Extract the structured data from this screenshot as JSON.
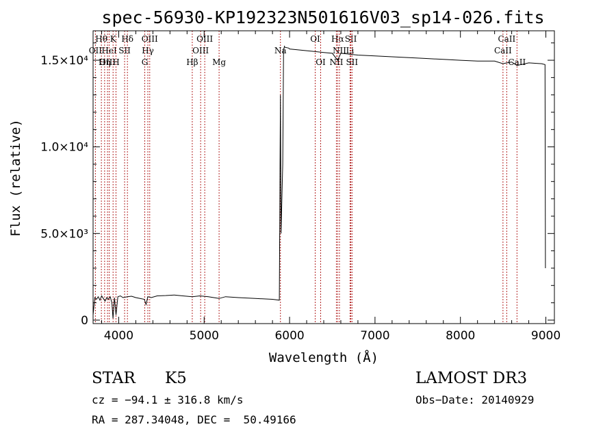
{
  "chart_data": {
    "type": "line",
    "title": "spec-56930-KP192323N501616V03_sp14-026.fits",
    "xlabel": "Wavelength (Å)",
    "ylabel": "Flux (relative)",
    "xlim": [
      3700,
      9100
    ],
    "ylim": [
      -200,
      16700
    ],
    "xticks": [
      4000,
      5000,
      6000,
      7000,
      8000,
      9000
    ],
    "xtick_labels": [
      "4000",
      "5000",
      "6000",
      "7000",
      "8000",
      "9000"
    ],
    "yticks": [
      0,
      5000,
      10000,
      15000
    ],
    "ytick_labels": [
      "0",
      "5.0×10³",
      "1.0×10⁴",
      "1.5×10⁴"
    ],
    "series": [
      {
        "name": "flux",
        "x": [
          3700,
          3720,
          3740,
          3760,
          3780,
          3800,
          3820,
          3840,
          3860,
          3880,
          3900,
          3920,
          3933,
          3950,
          3968,
          3990,
          4020,
          4050,
          4101,
          4150,
          4200,
          4250,
          4300,
          4320,
          4340,
          4380,
          4450,
          4550,
          4650,
          4750,
          4861,
          4950,
          5050,
          5175,
          5250,
          5400,
          5600,
          5800,
          5880,
          5893,
          5900,
          5920,
          5930,
          5940,
          5945,
          5990,
          6000,
          6100,
          6200,
          6300,
          6400,
          6500,
          6563,
          6600,
          6700,
          6800,
          7000,
          7200,
          7400,
          7600,
          7800,
          8000,
          8200,
          8400,
          8498,
          8542,
          8600,
          8662,
          8800,
          8950,
          8990,
          8995
        ],
        "y": [
          300,
          1300,
          1200,
          1350,
          1150,
          1400,
          1250,
          1100,
          1300,
          1200,
          1350,
          1000,
          100,
          1300,
          300,
          1350,
          1400,
          1300,
          1350,
          1380,
          1300,
          1250,
          1200,
          900,
          1350,
          1300,
          1400,
          1420,
          1450,
          1400,
          1350,
          1400,
          1350,
          1250,
          1350,
          1300,
          1250,
          1200,
          1150,
          13000,
          5000,
          9000,
          15600,
          15800,
          15750,
          15700,
          15650,
          15600,
          15550,
          15500,
          15450,
          15400,
          15000,
          15400,
          15350,
          15300,
          15250,
          15200,
          15150,
          15100,
          15050,
          15000,
          14950,
          14950,
          14800,
          14850,
          14900,
          14700,
          14850,
          14800,
          14750,
          3000
        ]
      }
    ],
    "lines": [
      {
        "name": "Hθ",
        "x": 3797,
        "row": 0
      },
      {
        "name": "OII",
        "x": 3727,
        "row": 1
      },
      {
        "name": "OIII",
        "x": 3869,
        "row": 2
      },
      {
        "name": "HeI",
        "x": 3889,
        "row": 1
      },
      {
        "name": "Hη",
        "x": 3835,
        "row": 2
      },
      {
        "name": "K",
        "x": 3934,
        "row": 0
      },
      {
        "name": "SII",
        "x": 4069,
        "row": 1
      },
      {
        "name": "H",
        "x": 3968,
        "row": 2
      },
      {
        "name": "Hδ",
        "x": 4102,
        "row": 0
      },
      {
        "name": "OIII",
        "x": 4363,
        "row": 0
      },
      {
        "name": "Hγ",
        "x": 4341,
        "row": 1
      },
      {
        "name": "G",
        "x": 4305,
        "row": 2
      },
      {
        "name": "OIII",
        "x": 5007,
        "row": 0
      },
      {
        "name": "OIII",
        "x": 4959,
        "row": 1
      },
      {
        "name": "Hβ",
        "x": 4861,
        "row": 2
      },
      {
        "name": "Mg",
        "x": 5175,
        "row": 2
      },
      {
        "name": "Na",
        "x": 5893,
        "row": 1
      },
      {
        "name": "OI",
        "x": 6300,
        "row": 0
      },
      {
        "name": "OI",
        "x": 6364,
        "row": 2
      },
      {
        "name": "Hα",
        "x": 6563,
        "row": 0
      },
      {
        "name": "SII",
        "x": 6717,
        "row": 0
      },
      {
        "name": "NII",
        "x": 6584,
        "row": 1
      },
      {
        "name": "Li",
        "x": 6708,
        "row": 1
      },
      {
        "name": "NII",
        "x": 6548,
        "row": 2
      },
      {
        "name": "SII",
        "x": 6731,
        "row": 2
      },
      {
        "name": "CaII",
        "x": 8542,
        "row": 0
      },
      {
        "name": "CaII",
        "x": 8498,
        "row": 1
      },
      {
        "name": "CaII",
        "x": 8662,
        "row": 2
      }
    ],
    "grid": false,
    "legend": "none"
  },
  "info": {
    "class": "STAR",
    "subclass": "K5",
    "survey": "LAMOST DR3",
    "cz": "cz = −94.1 ± 316.8 km/s",
    "obs_date": "Obs−Date: 20140929",
    "radec": "RA = 287.34048, DEC =  50.49166"
  },
  "colors": {
    "line_marker": "#b22222",
    "spectrum": "#000000"
  }
}
